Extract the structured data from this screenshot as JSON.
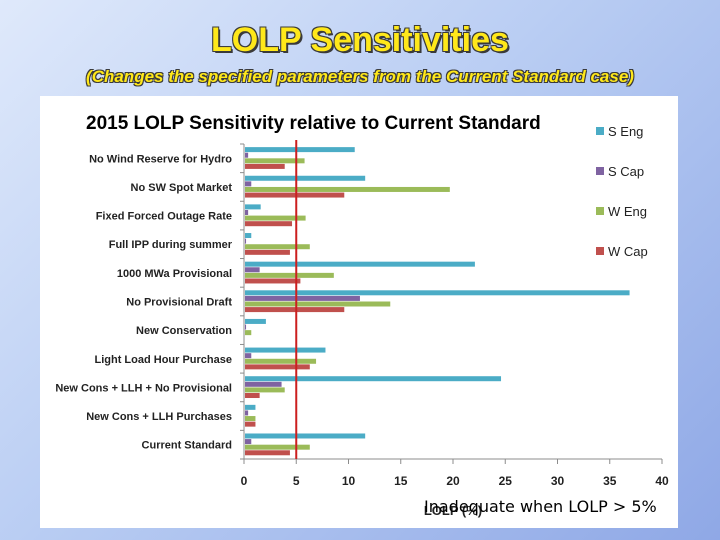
{
  "slide": {
    "title": "LOLP Sensitivities",
    "subtitle": "(Changes the specified parameters from the Current Standard case)",
    "annotation": "Inadequate when LOLP > 5%"
  },
  "colors": {
    "title": "#ffe81a",
    "s_eng": "#4bacc6",
    "s_cap": "#7f63a1",
    "w_eng": "#9bbb59",
    "w_cap": "#c0504d",
    "threshold": "#cc1f1f"
  },
  "chart_data": {
    "type": "bar",
    "orientation": "horizontal",
    "title": "2015 LOLP Sensitivity relative to Current Standard",
    "xlabel": "LOLP (%)",
    "ylabel": "",
    "xlim": [
      0,
      40
    ],
    "xticks": [
      0,
      5,
      10,
      15,
      20,
      25,
      30,
      35,
      40
    ],
    "legend_position": "right",
    "threshold": 5,
    "categories": [
      "No Wind Reserve for Hydro",
      "No SW Spot Market",
      "Fixed Forced Outage Rate",
      "Full IPP during summer",
      "1000 MWa Provisional",
      "No Provisional Draft",
      "New Conservation",
      "Light Load Hour Purchase",
      "New Cons + LLH + No Provisional",
      "New Cons + LLH Purchases",
      "Current Standard"
    ],
    "series": [
      {
        "name": "S Eng",
        "values": [
          10.5,
          11.5,
          1.5,
          0.6,
          22,
          36.8,
          2,
          7.7,
          24.5,
          1,
          11.5
        ]
      },
      {
        "name": "S Cap",
        "values": [
          0.3,
          0.6,
          0.3,
          0.1,
          1.4,
          11,
          0.1,
          0.6,
          3.5,
          0.3,
          0.6
        ]
      },
      {
        "name": "W Eng",
        "values": [
          5.7,
          19.6,
          5.8,
          6.2,
          8.5,
          13.9,
          0.6,
          6.8,
          3.8,
          1,
          6.2
        ]
      },
      {
        "name": "W Cap",
        "values": [
          3.8,
          9.5,
          4.5,
          4.3,
          5.3,
          9.5,
          0,
          6.2,
          1.4,
          1,
          4.3
        ]
      }
    ]
  }
}
